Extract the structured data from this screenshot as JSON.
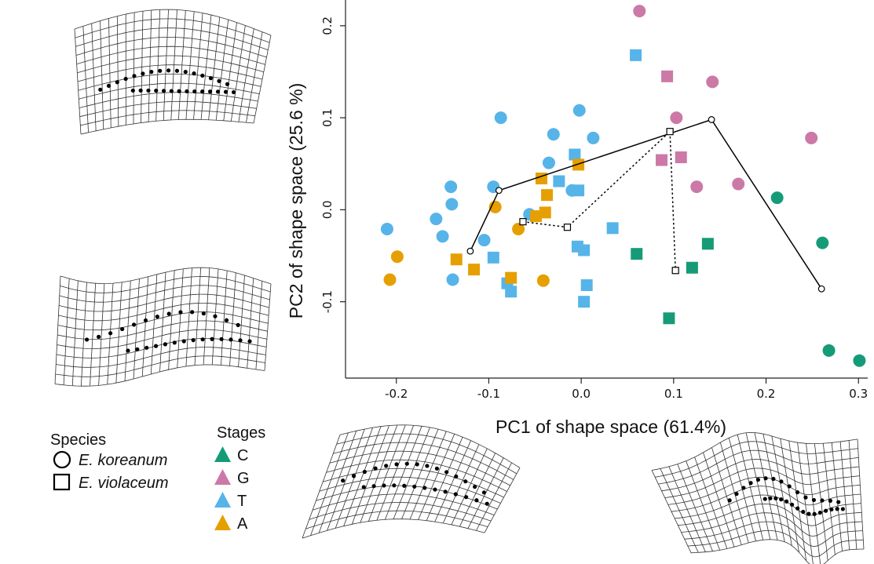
{
  "chart_data": {
    "type": "scatter",
    "xlabel": "PC1 of shape space (61.4%)",
    "ylabel": "PC2 of shape space (25.6 %)",
    "xlim": [
      -0.255,
      0.31
    ],
    "ylim": [
      -0.183,
      0.228
    ],
    "x_ticks": [
      "-0.2",
      "-0.1",
      "0.0",
      "0.1",
      "0.2",
      "0.3"
    ],
    "x_tick_values": [
      -0.2,
      -0.1,
      0.0,
      0.1,
      0.2,
      0.3
    ],
    "y_ticks": [
      "-0.1",
      "0.0",
      "0.1",
      "0.2"
    ],
    "y_tick_values": [
      -0.1,
      0.0,
      0.1,
      0.2
    ],
    "grid": false,
    "colors": {
      "C": "#169b78",
      "G": "#cc79a7",
      "T": "#56b4e9",
      "A": "#e69f00"
    },
    "species_legend": {
      "title": "Species",
      "items": [
        {
          "shape": "circle",
          "label": "E. koreanum"
        },
        {
          "shape": "square",
          "label": "E. violaceum"
        }
      ]
    },
    "stage_legend": {
      "title": "Stages",
      "items": [
        "C",
        "G",
        "T",
        "A"
      ]
    },
    "points": [
      {
        "x": 0.063,
        "y": 0.216,
        "stage": "G",
        "species": "circle"
      },
      {
        "x": 0.142,
        "y": 0.139,
        "stage": "G",
        "species": "circle"
      },
      {
        "x": 0.103,
        "y": 0.1,
        "stage": "G",
        "species": "circle"
      },
      {
        "x": 0.249,
        "y": 0.078,
        "stage": "G",
        "species": "circle"
      },
      {
        "x": 0.125,
        "y": 0.025,
        "stage": "G",
        "species": "circle"
      },
      {
        "x": 0.17,
        "y": 0.028,
        "stage": "G",
        "species": "circle"
      },
      {
        "x": 0.093,
        "y": 0.145,
        "stage": "G",
        "species": "square"
      },
      {
        "x": 0.087,
        "y": 0.054,
        "stage": "G",
        "species": "square"
      },
      {
        "x": 0.108,
        "y": 0.057,
        "stage": "G",
        "species": "square"
      },
      {
        "x": 0.212,
        "y": 0.013,
        "stage": "C",
        "species": "circle"
      },
      {
        "x": 0.261,
        "y": -0.036,
        "stage": "C",
        "species": "circle"
      },
      {
        "x": 0.268,
        "y": -0.153,
        "stage": "C",
        "species": "circle"
      },
      {
        "x": 0.301,
        "y": -0.164,
        "stage": "C",
        "species": "circle"
      },
      {
        "x": 0.06,
        "y": -0.048,
        "stage": "C",
        "species": "square"
      },
      {
        "x": 0.12,
        "y": -0.063,
        "stage": "C",
        "species": "square"
      },
      {
        "x": 0.137,
        "y": -0.037,
        "stage": "C",
        "species": "square"
      },
      {
        "x": 0.095,
        "y": -0.118,
        "stage": "C",
        "species": "square"
      },
      {
        "x": -0.087,
        "y": 0.1,
        "stage": "T",
        "species": "circle"
      },
      {
        "x": -0.03,
        "y": 0.082,
        "stage": "T",
        "species": "circle"
      },
      {
        "x": -0.002,
        "y": 0.108,
        "stage": "T",
        "species": "circle"
      },
      {
        "x": 0.013,
        "y": 0.078,
        "stage": "T",
        "species": "circle"
      },
      {
        "x": -0.035,
        "y": 0.051,
        "stage": "T",
        "species": "circle"
      },
      {
        "x": -0.141,
        "y": 0.025,
        "stage": "T",
        "species": "circle"
      },
      {
        "x": -0.095,
        "y": 0.025,
        "stage": "T",
        "species": "circle"
      },
      {
        "x": -0.14,
        "y": 0.006,
        "stage": "T",
        "species": "circle"
      },
      {
        "x": -0.157,
        "y": -0.01,
        "stage": "T",
        "species": "circle"
      },
      {
        "x": -0.21,
        "y": -0.021,
        "stage": "T",
        "species": "circle"
      },
      {
        "x": -0.15,
        "y": -0.029,
        "stage": "T",
        "species": "circle"
      },
      {
        "x": -0.105,
        "y": -0.033,
        "stage": "T",
        "species": "circle"
      },
      {
        "x": -0.139,
        "y": -0.076,
        "stage": "T",
        "species": "circle"
      },
      {
        "x": -0.01,
        "y": 0.021,
        "stage": "T",
        "species": "circle"
      },
      {
        "x": -0.056,
        "y": -0.005,
        "stage": "T",
        "species": "circle"
      },
      {
        "x": 0.059,
        "y": 0.168,
        "stage": "T",
        "species": "square"
      },
      {
        "x": -0.007,
        "y": 0.06,
        "stage": "T",
        "species": "square"
      },
      {
        "x": -0.024,
        "y": 0.031,
        "stage": "T",
        "species": "square"
      },
      {
        "x": -0.003,
        "y": 0.021,
        "stage": "T",
        "species": "square"
      },
      {
        "x": 0.034,
        "y": -0.02,
        "stage": "T",
        "species": "square"
      },
      {
        "x": -0.004,
        "y": -0.04,
        "stage": "T",
        "species": "square"
      },
      {
        "x": 0.003,
        "y": -0.044,
        "stage": "T",
        "species": "square"
      },
      {
        "x": -0.095,
        "y": -0.052,
        "stage": "T",
        "species": "square"
      },
      {
        "x": -0.08,
        "y": -0.08,
        "stage": "T",
        "species": "square"
      },
      {
        "x": -0.076,
        "y": -0.089,
        "stage": "T",
        "species": "square"
      },
      {
        "x": 0.006,
        "y": -0.082,
        "stage": "T",
        "species": "square"
      },
      {
        "x": 0.003,
        "y": -0.1,
        "stage": "T",
        "species": "square"
      },
      {
        "x": -0.093,
        "y": 0.003,
        "stage": "A",
        "species": "circle"
      },
      {
        "x": -0.068,
        "y": -0.021,
        "stage": "A",
        "species": "circle"
      },
      {
        "x": -0.199,
        "y": -0.051,
        "stage": "A",
        "species": "circle"
      },
      {
        "x": -0.207,
        "y": -0.076,
        "stage": "A",
        "species": "circle"
      },
      {
        "x": -0.041,
        "y": -0.077,
        "stage": "A",
        "species": "circle"
      },
      {
        "x": -0.043,
        "y": 0.034,
        "stage": "A",
        "species": "square"
      },
      {
        "x": -0.003,
        "y": 0.049,
        "stage": "A",
        "species": "square"
      },
      {
        "x": -0.037,
        "y": 0.016,
        "stage": "A",
        "species": "square"
      },
      {
        "x": -0.049,
        "y": -0.007,
        "stage": "A",
        "species": "square"
      },
      {
        "x": -0.039,
        "y": -0.003,
        "stage": "A",
        "species": "square"
      },
      {
        "x": -0.135,
        "y": -0.054,
        "stage": "A",
        "species": "square"
      },
      {
        "x": -0.116,
        "y": -0.065,
        "stage": "A",
        "species": "square"
      },
      {
        "x": -0.076,
        "y": -0.074,
        "stage": "A",
        "species": "square"
      }
    ],
    "trajectories": [
      {
        "style": "solid",
        "marker": "circle",
        "points": [
          [
            -0.12,
            -0.045
          ],
          [
            -0.089,
            0.021
          ],
          [
            0.141,
            0.098
          ],
          [
            0.26,
            -0.086
          ]
        ]
      },
      {
        "style": "dotted",
        "marker": "square",
        "points": [
          [
            -0.063,
            -0.013
          ],
          [
            -0.015,
            -0.019
          ],
          [
            0.096,
            0.085
          ],
          [
            0.102,
            -0.066
          ]
        ]
      }
    ]
  }
}
